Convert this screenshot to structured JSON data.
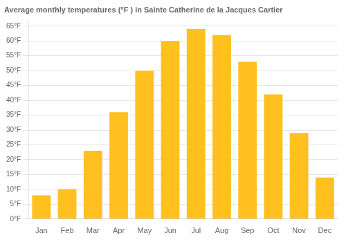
{
  "chart_data": {
    "type": "bar",
    "title": "Average monthly temperatures (°F ) in Sainte Catherine de la Jacques Cartier",
    "categories": [
      "Jan",
      "Feb",
      "Mar",
      "Apr",
      "May",
      "Jun",
      "Jul",
      "Aug",
      "Sep",
      "Oct",
      "Nov",
      "Dec"
    ],
    "values": [
      8,
      10,
      23,
      36,
      50,
      60,
      64,
      62,
      53,
      42,
      29,
      14
    ],
    "color": "#FFC020",
    "ylim": [
      0,
      67
    ],
    "yticks": [
      {
        "value": 0,
        "label": "0°F"
      },
      {
        "value": 5,
        "label": "5°F"
      },
      {
        "value": 10,
        "label": "10°F"
      },
      {
        "value": 15,
        "label": "15°F"
      },
      {
        "value": 20,
        "label": "20°F"
      },
      {
        "value": 25,
        "label": "25°F"
      },
      {
        "value": 30,
        "label": "30°F"
      },
      {
        "value": 35,
        "label": "35°F"
      },
      {
        "value": 40,
        "label": "40°F"
      },
      {
        "value": 45,
        "label": "45°F"
      },
      {
        "value": 50,
        "label": "50°F"
      },
      {
        "value": 55,
        "label": "55°F"
      },
      {
        "value": 60,
        "label": "60°F"
      },
      {
        "value": 65,
        "label": "65°F"
      }
    ],
    "grid": true
  }
}
